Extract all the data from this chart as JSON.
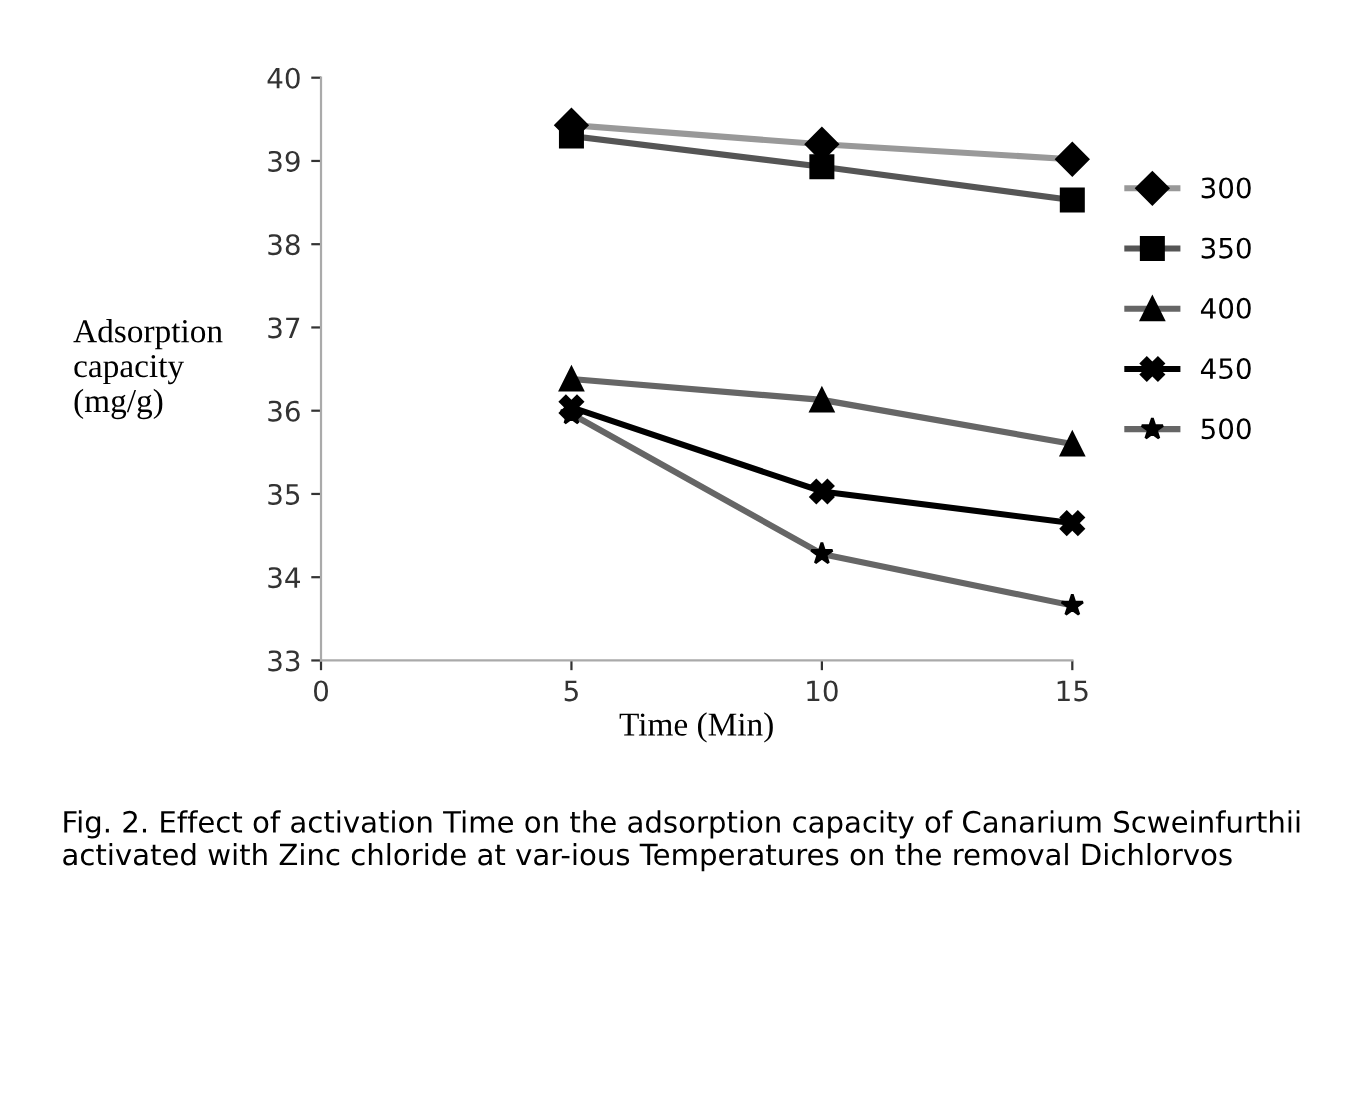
{
  "chart_data": {
    "type": "line",
    "xlabel": "Time (Min)",
    "ylabel": "Adsorption\ncapacity\n(mg/g)",
    "x": [
      5,
      10,
      15
    ],
    "series": [
      {
        "name": "300",
        "color": "#999999",
        "marker": "diamond",
        "values": [
          39.43,
          39.2,
          39.02
        ]
      },
      {
        "name": "350",
        "color": "#555555",
        "marker": "square",
        "values": [
          39.3,
          38.93,
          38.53
        ]
      },
      {
        "name": "400",
        "color": "#666666",
        "marker": "triangle",
        "values": [
          36.38,
          36.13,
          35.6
        ]
      },
      {
        "name": "450",
        "color": "#000000",
        "marker": "cross",
        "values": [
          36.04,
          35.03,
          34.65
        ]
      },
      {
        "name": "500",
        "color": "#666666",
        "marker": "star",
        "values": [
          35.96,
          34.28,
          33.66
        ]
      }
    ],
    "xlim": [
      0,
      15
    ],
    "xticks": [
      0,
      5,
      10,
      15
    ],
    "ylim": [
      33,
      40
    ],
    "yticks": [
      33,
      34,
      35,
      36,
      37,
      38,
      39,
      40
    ],
    "grid": false,
    "legend": "right",
    "annotations": [
      "Fig. 2. Effect of activation Time on the adsorption capacity of Canarium Scweinfurthii activated with Zinc chloride at var-ious Temperatures on the removal Dichlorvos"
    ]
  }
}
